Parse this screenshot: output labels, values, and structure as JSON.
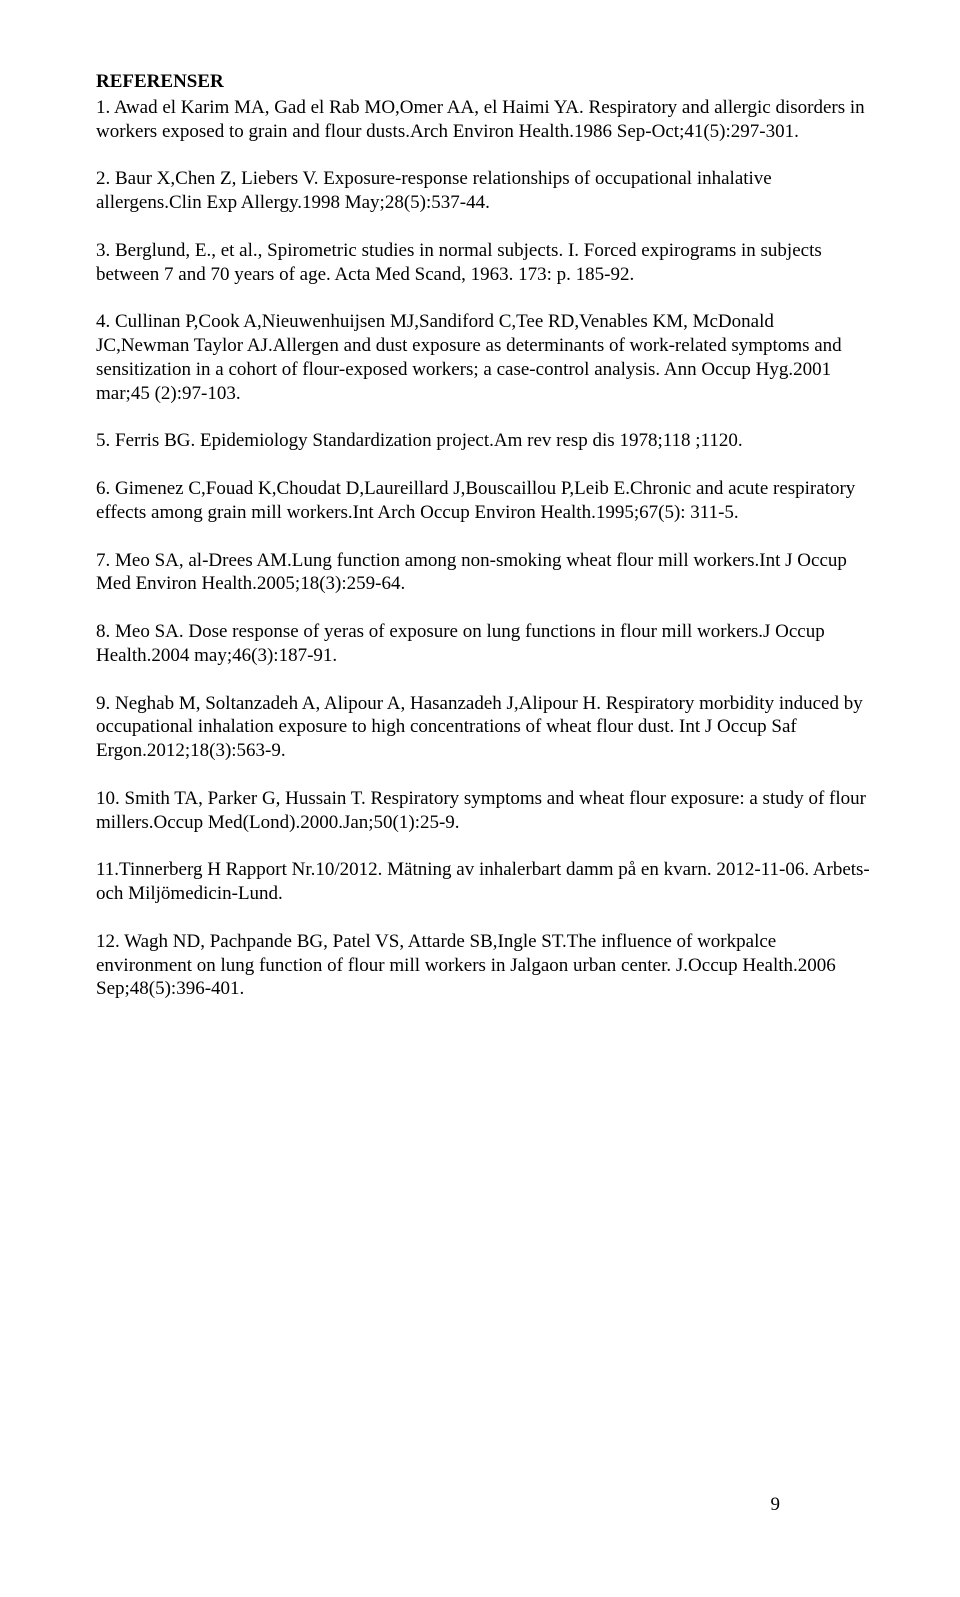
{
  "heading": "REFERENSER",
  "references": [
    "1. Awad el Karim MA, Gad el Rab MO,Omer AA, el Haimi YA. Respiratory and allergic disorders in workers exposed to grain and flour dusts.Arch Environ Health.1986 Sep-Oct;41(5):297-301.",
    "2. Baur X,Chen Z, Liebers V. Exposure-response relationships of occupational inhalative allergens.Clin Exp Allergy.1998 May;28(5):537-44.",
    "3. Berglund, E., et al., Spirometric studies in normal subjects. I. Forced expirograms in subjects between 7 and 70 years of age. Acta Med Scand, 1963. 173: p. 185-92.",
    "4. Cullinan P,Cook A,Nieuwenhuijsen MJ,Sandiford C,Tee RD,Venables KM, McDonald JC,Newman Taylor AJ.Allergen and dust exposure as determinants of work-related symptoms and sensitization in a cohort of flour-exposed workers; a case-control analysis. Ann Occup Hyg.2001 mar;45 (2):97-103.",
    "5. Ferris BG. Epidemiology Standardization project.Am rev resp dis 1978;118 ;1120.",
    "6. Gimenez C,Fouad K,Choudat D,Laureillard J,Bouscaillou P,Leib E.Chronic and acute respiratory effects among grain mill workers.Int Arch Occup Environ Health.1995;67(5): 311-5.",
    "7. Meo SA, al-Drees AM.Lung function among non-smoking wheat flour mill workers.Int J Occup Med Environ Health.2005;18(3):259-64.",
    "8. Meo SA. Dose response of yeras of exposure on lung functions in flour mill workers.J Occup Health.2004 may;46(3):187-91.",
    "9. Neghab M, Soltanzadeh A, Alipour A, Hasanzadeh J,Alipour H. Respiratory morbidity induced by occupational inhalation exposure to high concentrations of wheat flour dust. Int J Occup Saf Ergon.2012;18(3):563-9.",
    "10. Smith TA, Parker G, Hussain T. Respiratory symptoms and wheat flour exposure: a study of flour millers.Occup Med(Lond).2000.Jan;50(1):25-9.",
    "11.Tinnerberg H Rapport Nr.10/2012. Mätning av inhalerbart damm på en kvarn. 2012-11-06. Arbets- och Miljömedicin-Lund.",
    "12. Wagh ND, Pachpande BG, Patel VS, Attarde SB,Ingle ST.The influence of workpalce environment on lung function of flour mill workers in Jalgaon urban center. J.Occup Health.2006 Sep;48(5):396-401."
  ],
  "pageNumber": "9"
}
